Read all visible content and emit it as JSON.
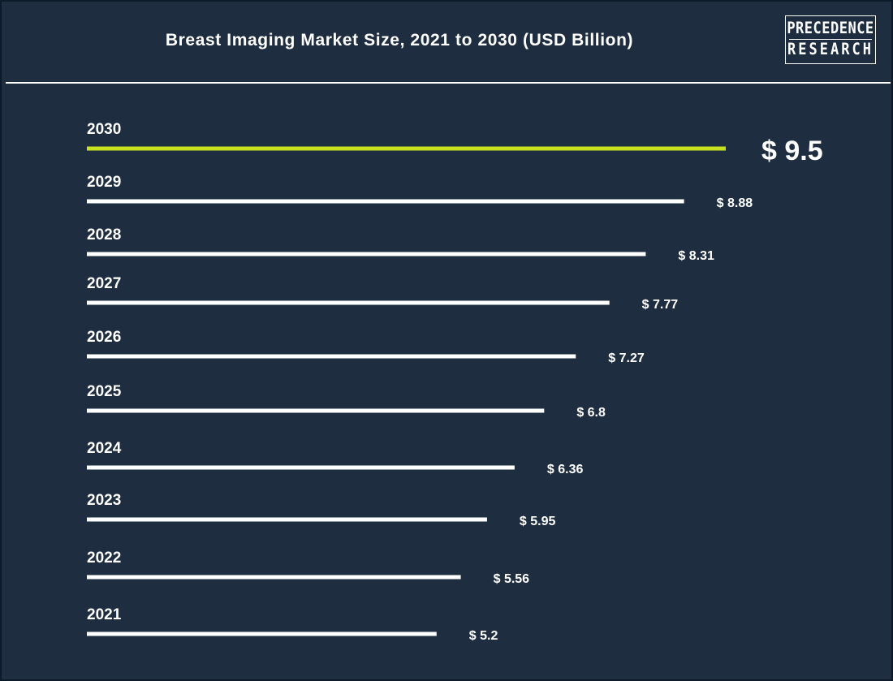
{
  "header": {
    "title": "Breast Imaging Market Size, 2021 to 2030 (USD Billion)",
    "logo_line1": "PRECEDENCE",
    "logo_line2": "RESEARCH"
  },
  "colors": {
    "background": "#1e2e40",
    "bar": "#ffffff",
    "highlight_bar": "#c8e11e",
    "text": "#ffffff"
  },
  "chart_data": {
    "type": "bar",
    "orientation": "horizontal",
    "title": "Breast Imaging Market Size, 2021 to 2030 (USD Billion)",
    "categories": [
      "2030",
      "2029",
      "2028",
      "2027",
      "2026",
      "2025",
      "2024",
      "2023",
      "2022",
      "2021"
    ],
    "values": [
      9.5,
      8.88,
      8.31,
      7.77,
      7.27,
      6.8,
      6.36,
      5.95,
      5.56,
      5.2
    ],
    "value_labels": [
      "$ 9.5",
      "$ 8.88",
      "$ 8.31",
      "$ 7.77",
      "$ 7.27",
      "$ 6.8",
      "$ 6.36",
      "$ 5.95",
      "$ 5.56",
      "$ 5.2"
    ],
    "highlight_category": "2030",
    "grid": false,
    "legend": "none"
  }
}
